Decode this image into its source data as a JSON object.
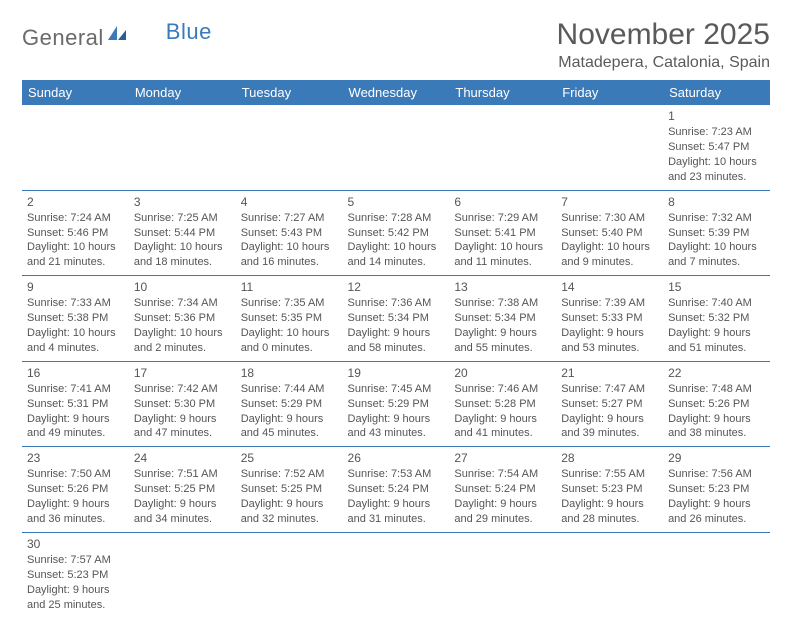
{
  "logo": {
    "text1": "General",
    "text2": "Blue"
  },
  "title": "November 2025",
  "location": "Matadepera, Catalonia, Spain",
  "colors": {
    "header_bg": "#3b7ab8",
    "border": "#3b7ab8",
    "text": "#555555"
  },
  "weekdays": [
    "Sunday",
    "Monday",
    "Tuesday",
    "Wednesday",
    "Thursday",
    "Friday",
    "Saturday"
  ],
  "weeks": [
    [
      null,
      null,
      null,
      null,
      null,
      null,
      {
        "d": "1",
        "sr": "Sunrise: 7:23 AM",
        "ss": "Sunset: 5:47 PM",
        "dl1": "Daylight: 10 hours",
        "dl2": "and 23 minutes."
      }
    ],
    [
      {
        "d": "2",
        "sr": "Sunrise: 7:24 AM",
        "ss": "Sunset: 5:46 PM",
        "dl1": "Daylight: 10 hours",
        "dl2": "and 21 minutes."
      },
      {
        "d": "3",
        "sr": "Sunrise: 7:25 AM",
        "ss": "Sunset: 5:44 PM",
        "dl1": "Daylight: 10 hours",
        "dl2": "and 18 minutes."
      },
      {
        "d": "4",
        "sr": "Sunrise: 7:27 AM",
        "ss": "Sunset: 5:43 PM",
        "dl1": "Daylight: 10 hours",
        "dl2": "and 16 minutes."
      },
      {
        "d": "5",
        "sr": "Sunrise: 7:28 AM",
        "ss": "Sunset: 5:42 PM",
        "dl1": "Daylight: 10 hours",
        "dl2": "and 14 minutes."
      },
      {
        "d": "6",
        "sr": "Sunrise: 7:29 AM",
        "ss": "Sunset: 5:41 PM",
        "dl1": "Daylight: 10 hours",
        "dl2": "and 11 minutes."
      },
      {
        "d": "7",
        "sr": "Sunrise: 7:30 AM",
        "ss": "Sunset: 5:40 PM",
        "dl1": "Daylight: 10 hours",
        "dl2": "and 9 minutes."
      },
      {
        "d": "8",
        "sr": "Sunrise: 7:32 AM",
        "ss": "Sunset: 5:39 PM",
        "dl1": "Daylight: 10 hours",
        "dl2": "and 7 minutes."
      }
    ],
    [
      {
        "d": "9",
        "sr": "Sunrise: 7:33 AM",
        "ss": "Sunset: 5:38 PM",
        "dl1": "Daylight: 10 hours",
        "dl2": "and 4 minutes."
      },
      {
        "d": "10",
        "sr": "Sunrise: 7:34 AM",
        "ss": "Sunset: 5:36 PM",
        "dl1": "Daylight: 10 hours",
        "dl2": "and 2 minutes."
      },
      {
        "d": "11",
        "sr": "Sunrise: 7:35 AM",
        "ss": "Sunset: 5:35 PM",
        "dl1": "Daylight: 10 hours",
        "dl2": "and 0 minutes."
      },
      {
        "d": "12",
        "sr": "Sunrise: 7:36 AM",
        "ss": "Sunset: 5:34 PM",
        "dl1": "Daylight: 9 hours",
        "dl2": "and 58 minutes."
      },
      {
        "d": "13",
        "sr": "Sunrise: 7:38 AM",
        "ss": "Sunset: 5:34 PM",
        "dl1": "Daylight: 9 hours",
        "dl2": "and 55 minutes."
      },
      {
        "d": "14",
        "sr": "Sunrise: 7:39 AM",
        "ss": "Sunset: 5:33 PM",
        "dl1": "Daylight: 9 hours",
        "dl2": "and 53 minutes."
      },
      {
        "d": "15",
        "sr": "Sunrise: 7:40 AM",
        "ss": "Sunset: 5:32 PM",
        "dl1": "Daylight: 9 hours",
        "dl2": "and 51 minutes."
      }
    ],
    [
      {
        "d": "16",
        "sr": "Sunrise: 7:41 AM",
        "ss": "Sunset: 5:31 PM",
        "dl1": "Daylight: 9 hours",
        "dl2": "and 49 minutes."
      },
      {
        "d": "17",
        "sr": "Sunrise: 7:42 AM",
        "ss": "Sunset: 5:30 PM",
        "dl1": "Daylight: 9 hours",
        "dl2": "and 47 minutes."
      },
      {
        "d": "18",
        "sr": "Sunrise: 7:44 AM",
        "ss": "Sunset: 5:29 PM",
        "dl1": "Daylight: 9 hours",
        "dl2": "and 45 minutes."
      },
      {
        "d": "19",
        "sr": "Sunrise: 7:45 AM",
        "ss": "Sunset: 5:29 PM",
        "dl1": "Daylight: 9 hours",
        "dl2": "and 43 minutes."
      },
      {
        "d": "20",
        "sr": "Sunrise: 7:46 AM",
        "ss": "Sunset: 5:28 PM",
        "dl1": "Daylight: 9 hours",
        "dl2": "and 41 minutes."
      },
      {
        "d": "21",
        "sr": "Sunrise: 7:47 AM",
        "ss": "Sunset: 5:27 PM",
        "dl1": "Daylight: 9 hours",
        "dl2": "and 39 minutes."
      },
      {
        "d": "22",
        "sr": "Sunrise: 7:48 AM",
        "ss": "Sunset: 5:26 PM",
        "dl1": "Daylight: 9 hours",
        "dl2": "and 38 minutes."
      }
    ],
    [
      {
        "d": "23",
        "sr": "Sunrise: 7:50 AM",
        "ss": "Sunset: 5:26 PM",
        "dl1": "Daylight: 9 hours",
        "dl2": "and 36 minutes."
      },
      {
        "d": "24",
        "sr": "Sunrise: 7:51 AM",
        "ss": "Sunset: 5:25 PM",
        "dl1": "Daylight: 9 hours",
        "dl2": "and 34 minutes."
      },
      {
        "d": "25",
        "sr": "Sunrise: 7:52 AM",
        "ss": "Sunset: 5:25 PM",
        "dl1": "Daylight: 9 hours",
        "dl2": "and 32 minutes."
      },
      {
        "d": "26",
        "sr": "Sunrise: 7:53 AM",
        "ss": "Sunset: 5:24 PM",
        "dl1": "Daylight: 9 hours",
        "dl2": "and 31 minutes."
      },
      {
        "d": "27",
        "sr": "Sunrise: 7:54 AM",
        "ss": "Sunset: 5:24 PM",
        "dl1": "Daylight: 9 hours",
        "dl2": "and 29 minutes."
      },
      {
        "d": "28",
        "sr": "Sunrise: 7:55 AM",
        "ss": "Sunset: 5:23 PM",
        "dl1": "Daylight: 9 hours",
        "dl2": "and 28 minutes."
      },
      {
        "d": "29",
        "sr": "Sunrise: 7:56 AM",
        "ss": "Sunset: 5:23 PM",
        "dl1": "Daylight: 9 hours",
        "dl2": "and 26 minutes."
      }
    ],
    [
      {
        "d": "30",
        "sr": "Sunrise: 7:57 AM",
        "ss": "Sunset: 5:23 PM",
        "dl1": "Daylight: 9 hours",
        "dl2": "and 25 minutes."
      },
      null,
      null,
      null,
      null,
      null,
      null
    ]
  ]
}
